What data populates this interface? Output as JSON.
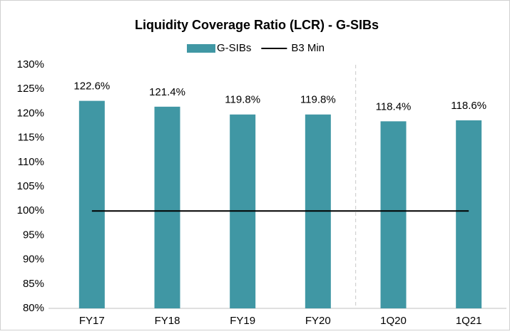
{
  "chart_data": {
    "type": "bar",
    "title": "Liquidity Coverage Ratio (LCR) - G-SIBs",
    "categories": [
      "FY17",
      "FY18",
      "FY19",
      "FY20",
      "1Q20",
      "1Q21"
    ],
    "series": [
      {
        "name": "G-SIBs",
        "type": "bar",
        "color": "#4097a4",
        "values": [
          122.6,
          121.4,
          119.8,
          119.8,
          118.4,
          118.6
        ],
        "value_labels": [
          "122.6%",
          "121.4%",
          "119.8%",
          "119.8%",
          "118.4%",
          "118.6%"
        ]
      },
      {
        "name": "B3 Min",
        "type": "line",
        "color": "#000000",
        "values": [
          100,
          100,
          100,
          100,
          100,
          100
        ]
      }
    ],
    "ylim": [
      80,
      130
    ],
    "yticks": [
      {
        "value": 80,
        "label": "80%"
      },
      {
        "value": 85,
        "label": "85%"
      },
      {
        "value": 90,
        "label": "90%"
      },
      {
        "value": 95,
        "label": "95%"
      },
      {
        "value": 100,
        "label": "100%"
      },
      {
        "value": 105,
        "label": "105%"
      },
      {
        "value": 110,
        "label": "110%"
      },
      {
        "value": 115,
        "label": "115%"
      },
      {
        "value": 120,
        "label": "120%"
      },
      {
        "value": 125,
        "label": "125%"
      },
      {
        "value": 130,
        "label": "130%"
      }
    ],
    "grid": false,
    "legend": "top"
  }
}
